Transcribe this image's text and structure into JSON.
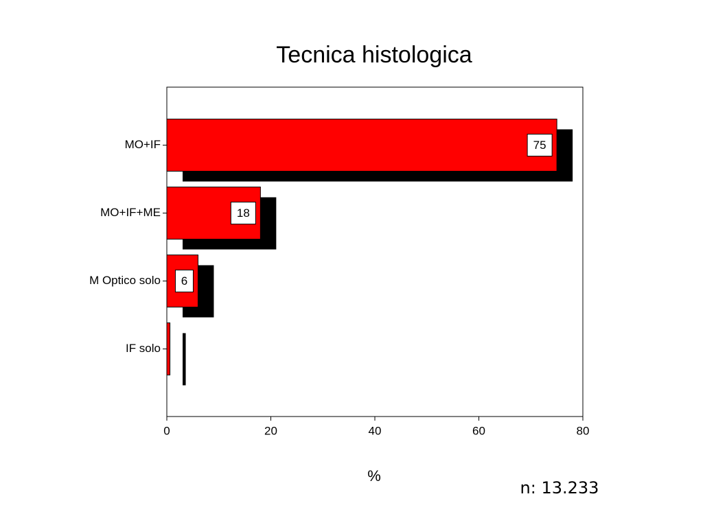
{
  "chart_data": {
    "type": "hbar",
    "title": "Tecnica histologica",
    "xlabel": "%",
    "annotation": "n: 13.233",
    "categories": [
      "MO+IF",
      "MO+IF+ME",
      "M Optico solo",
      "IF solo"
    ],
    "values": [
      75,
      18,
      6,
      0.6
    ],
    "value_labels": [
      "75",
      "18",
      "6",
      null
    ],
    "color": "#ff0000",
    "shadow_color": "#000000",
    "xlim": [
      0,
      80
    ],
    "xticks": [
      0,
      20,
      40,
      60,
      80
    ]
  }
}
